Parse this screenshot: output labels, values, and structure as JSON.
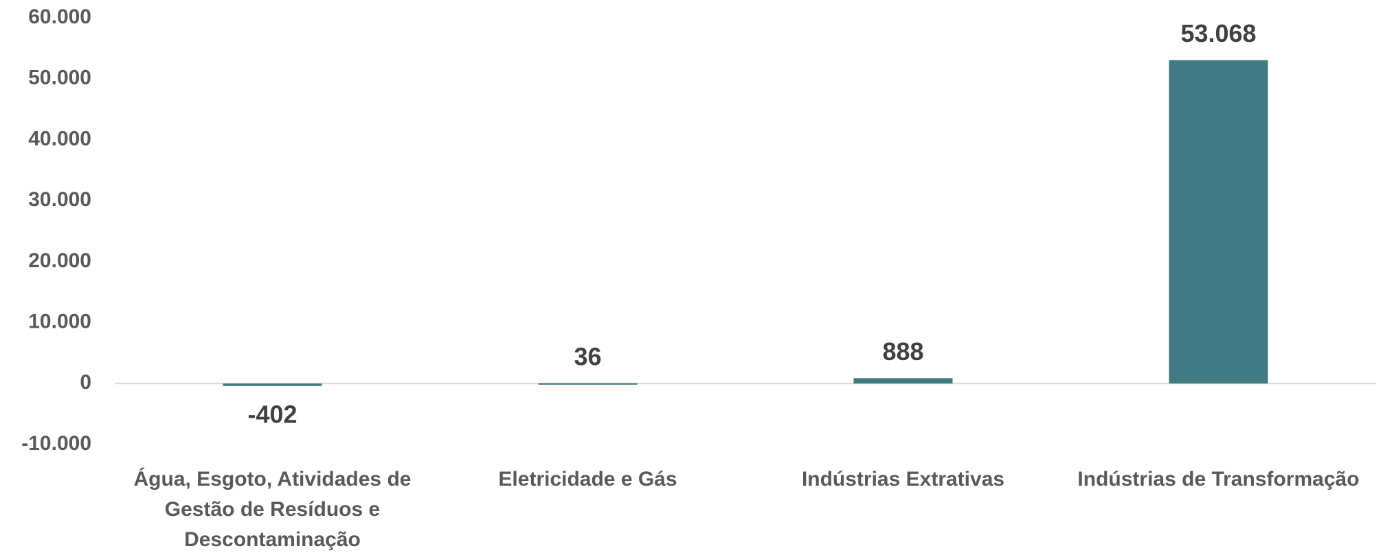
{
  "chart_data": {
    "type": "bar",
    "categories": [
      "Água, Esgoto, Atividades de Gestão de Resíduos e Descontaminação",
      "Eletricidade e Gás",
      "Indústrias Extrativas",
      "Indústrias de Transformação"
    ],
    "values": [
      -402,
      36,
      888,
      53068
    ],
    "value_labels": [
      "-402",
      "36",
      "888",
      "53.068"
    ],
    "color": "#417a82",
    "ylim": [
      -10000,
      60000
    ],
    "yticks": [
      {
        "value": -10000,
        "label": "-10.000"
      },
      0,
      {
        "value": 10000,
        "label": "10.000"
      },
      {
        "value": 20000,
        "label": "20.000"
      },
      {
        "value": 30000,
        "label": "30.000"
      },
      {
        "value": 40000,
        "label": "40.000"
      },
      {
        "value": 50000,
        "label": "50.000"
      },
      {
        "value": 60000,
        "label": "60.000"
      }
    ],
    "grid": false
  }
}
